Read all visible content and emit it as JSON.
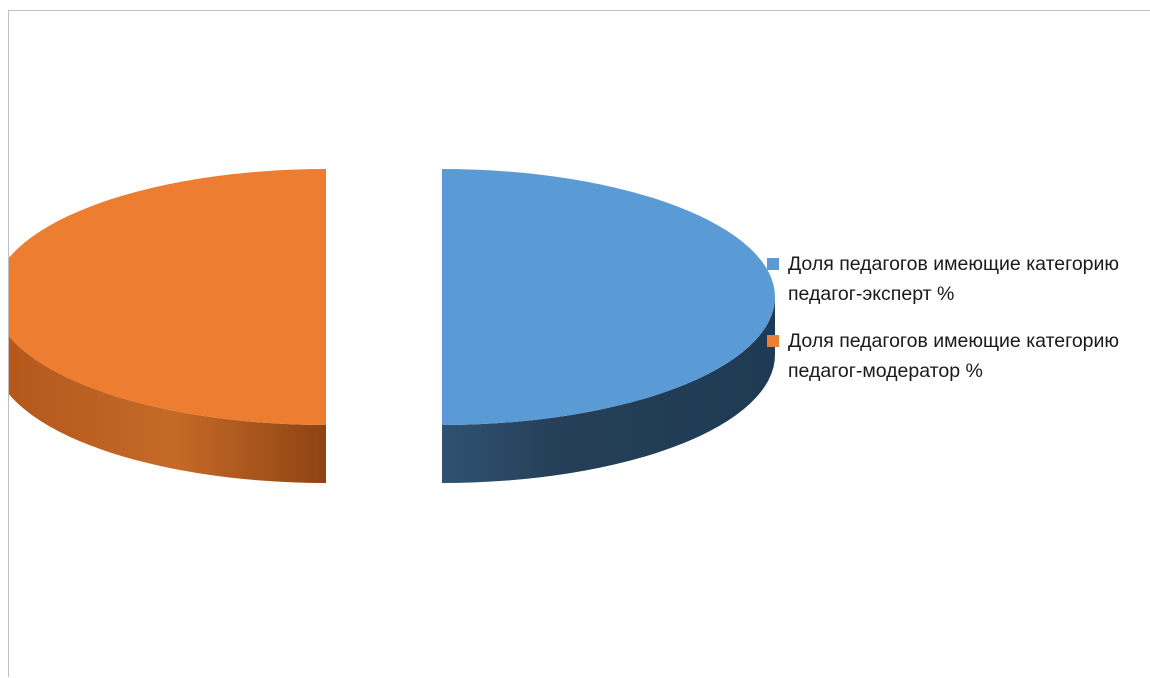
{
  "chart_data": {
    "type": "pie",
    "style": "3d-exploded",
    "title": "",
    "categories": [
      "Доля педагогов имеющие категорию педагог-эксперт %",
      "Доля педагогов имеющие категорию педагог-модератор %"
    ],
    "values": [
      50,
      50
    ],
    "colors": [
      "#5b9bd5",
      "#ed7d31"
    ],
    "legend_position": "right"
  },
  "legend": {
    "items": [
      {
        "label": "Доля педагогов имеющие категорию педагог-эксперт %",
        "color": "#5b9bd5"
      },
      {
        "label": "Доля педагогов имеющие категорию педагог-модератор %",
        "color": "#ed7d31"
      }
    ]
  }
}
